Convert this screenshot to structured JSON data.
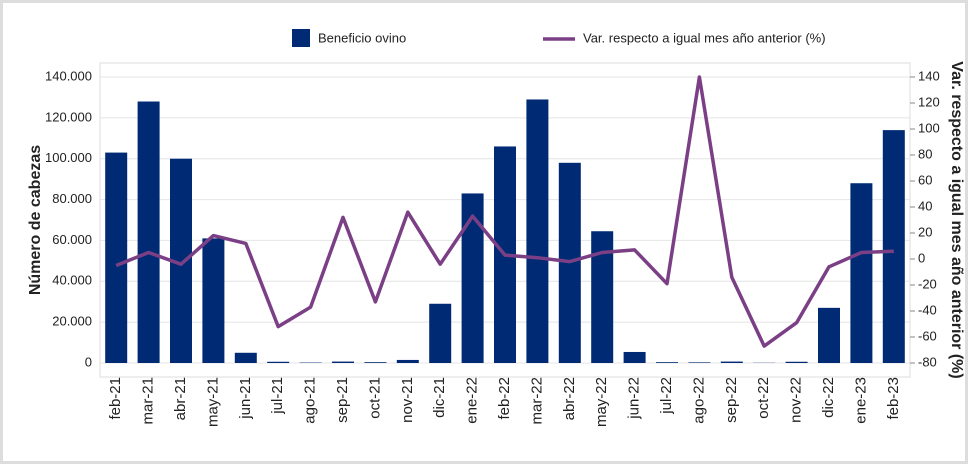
{
  "chart_data": {
    "type": "bar_line",
    "categories": [
      "feb-21",
      "mar-21",
      "abr-21",
      "may-21",
      "jun-21",
      "jul-21",
      "ago-21",
      "sep-21",
      "oct-21",
      "nov-21",
      "dic-21",
      "ene-22",
      "feb-22",
      "mar-22",
      "abr-22",
      "may-22",
      "jun-22",
      "jul-22",
      "ago-22",
      "sep-22",
      "oct-22",
      "nov-22",
      "dic-22",
      "ene-23",
      "feb-23"
    ],
    "series": [
      {
        "name": "Beneficio ovino",
        "color": "#002b74",
        "type": "bar",
        "values": [
          103000,
          128000,
          100000,
          61000,
          5000,
          600,
          200,
          700,
          400,
          1500,
          29000,
          83000,
          106000,
          129000,
          98000,
          64500,
          5400,
          400,
          300,
          700,
          100,
          600,
          27000,
          88000,
          114000
        ]
      },
      {
        "name": "Var. respecto a igual mes año anterior (%)",
        "color": "#7b3f86",
        "type": "line",
        "axis": "y2",
        "values": [
          -5,
          5,
          -4,
          18,
          12,
          -52,
          -37,
          32,
          -33,
          36,
          -4,
          33,
          3,
          1,
          -2,
          5,
          7,
          -19,
          140,
          -14,
          -67,
          -49,
          -6,
          5,
          6
        ]
      }
    ],
    "ylabel": "Número de cabezas",
    "y2label": "Var. respecto a igual mes año anterior (%)",
    "ylim": [
      0,
      140000
    ],
    "yticks": [
      0,
      {
        "value": 20000,
        "label": "20.000"
      },
      {
        "value": 40000,
        "label": "40.000"
      },
      {
        "value": 60000,
        "label": "60.000"
      },
      {
        "value": 80000,
        "label": "80.000"
      },
      {
        "value": 100000,
        "label": "100.000"
      },
      {
        "value": 120000,
        "label": "120.000"
      },
      {
        "value": 140000,
        "label": "140.000"
      }
    ],
    "y2lim": [
      -80,
      140
    ],
    "y2ticks": [
      -80,
      -60,
      -40,
      -20,
      0,
      20,
      40,
      60,
      80,
      100,
      120,
      140
    ],
    "grid": true
  }
}
